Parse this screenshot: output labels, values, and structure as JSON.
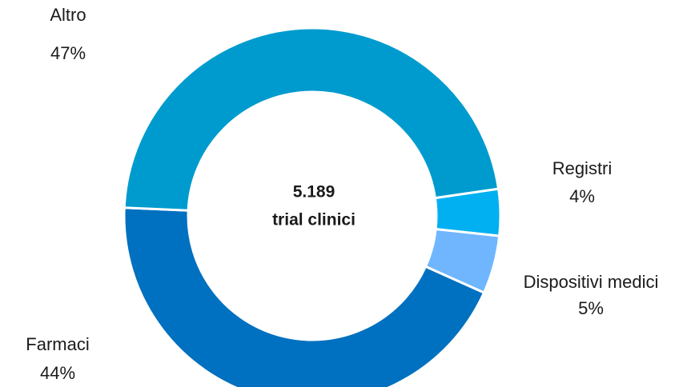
{
  "chart_data": {
    "type": "donut",
    "categories": [
      "Altro",
      "Registri",
      "Dispositivi medici",
      "Farmaci"
    ],
    "values": [
      47,
      4,
      5,
      44
    ],
    "value_labels": [
      "47%",
      "4%",
      "5%",
      "44%"
    ],
    "colors": [
      "#009bce",
      "#00b0f0",
      "#6fb6ff",
      "#0070c0"
    ],
    "center_text": [
      "5.189",
      "trial clinici"
    ]
  }
}
